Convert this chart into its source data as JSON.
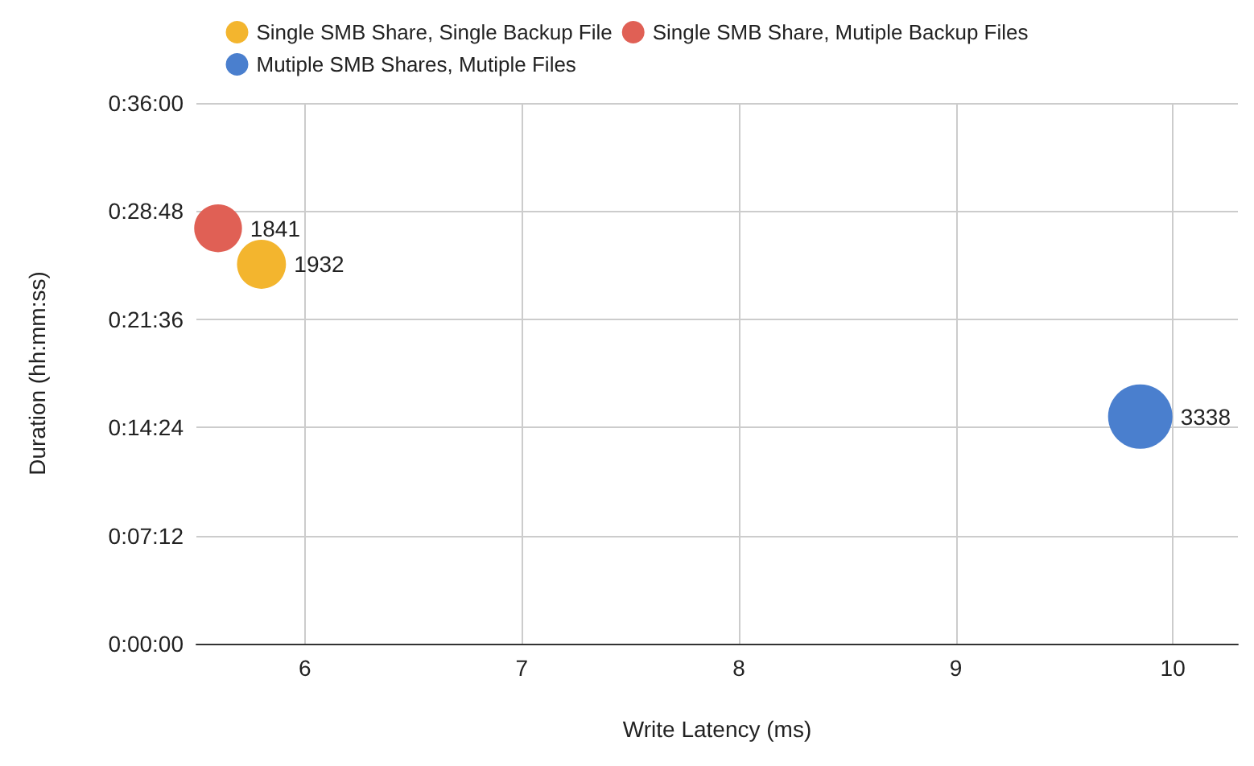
{
  "chart_data": {
    "type": "bubble",
    "xlabel": "Write Latency (ms)",
    "ylabel": "Duration (hh:mm:ss)",
    "xlim": [
      5.5,
      10.3
    ],
    "xticks": [
      6,
      7,
      8,
      9,
      10
    ],
    "ylim": [
      0,
      0.6
    ],
    "yticks": [
      {
        "value": 0,
        "label": "0:00:00"
      },
      {
        "value": 0.12,
        "label": "0:07:12"
      },
      {
        "value": 0.24,
        "label": "0:14:24"
      },
      {
        "value": 0.36,
        "label": "0:21:36"
      },
      {
        "value": 0.48,
        "label": "0:28:48"
      },
      {
        "value": 0.6,
        "label": "0:36:00"
      }
    ],
    "grid": true,
    "legend": "top",
    "series": [
      {
        "name": "Single SMB Share, Single Backup File",
        "color": "#f3b52e",
        "x": [
          5.8
        ],
        "values": [
          0.421
        ],
        "sizes": [
          1932
        ],
        "value_labels": [
          "1932"
        ]
      },
      {
        "name": "Single SMB Share, Mutiple Backup Files",
        "color": "#e06055",
        "x": [
          5.6
        ],
        "values": [
          0.461
        ],
        "sizes": [
          1841
        ],
        "value_labels": [
          "1841"
        ]
      },
      {
        "name": "Mutiple SMB Shares, Mutiple Files",
        "color": "#4a7fce",
        "x": [
          9.85
        ],
        "values": [
          0.252
        ],
        "sizes": [
          3338
        ],
        "value_labels": [
          "3338"
        ]
      }
    ]
  }
}
